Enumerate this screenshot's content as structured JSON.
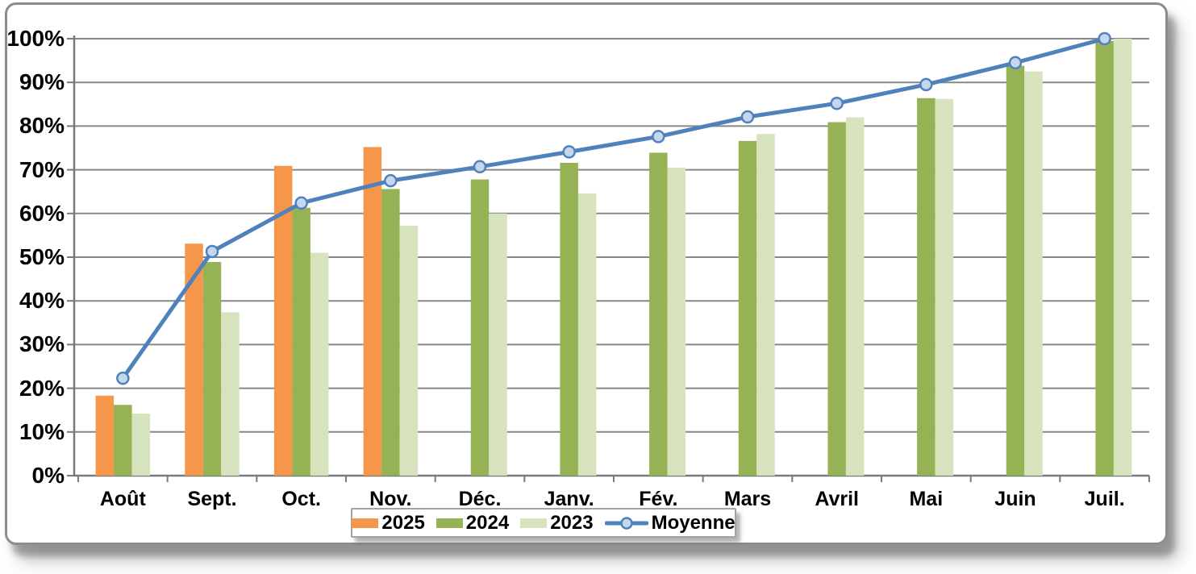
{
  "chart_data": {
    "type": "bar",
    "subtype": "grouped-bars-with-line-overlay",
    "title": "",
    "xlabel": "",
    "ylabel": "",
    "ylim": [
      0,
      100
    ],
    "grid": true,
    "legend_position": "bottom-center",
    "y_ticks": [
      "0%",
      "10%",
      "20%",
      "30%",
      "40%",
      "50%",
      "60%",
      "70%",
      "80%",
      "90%",
      "100%"
    ],
    "categories": [
      "Août",
      "Sept.",
      "Oct.",
      "Nov.",
      "Déc.",
      "Janv.",
      "Fév.",
      "Mars",
      "Avril",
      "Mai",
      "Juin",
      "Juil."
    ],
    "series": [
      {
        "name": "2025",
        "type": "bar",
        "color": "#F5964A",
        "values": [
          18.3,
          53.1,
          70.9,
          75.2,
          null,
          null,
          null,
          null,
          null,
          null,
          null,
          null
        ]
      },
      {
        "name": "2024",
        "type": "bar",
        "color": "#95B354",
        "values": [
          16.2,
          48.9,
          61.3,
          65.6,
          67.8,
          71.6,
          73.9,
          76.6,
          80.9,
          86.4,
          93.8,
          99.5
        ]
      },
      {
        "name": "2023",
        "type": "bar",
        "color": "#D6E3BC",
        "values": [
          14.2,
          37.4,
          51.0,
          57.2,
          60.0,
          64.6,
          70.5,
          78.2,
          82.0,
          86.2,
          92.5,
          100
        ]
      },
      {
        "name": "Moyenne",
        "type": "line",
        "color": "#4F81BD",
        "marker_fill": "#C5D7ED",
        "values": [
          22.3,
          51.3,
          62.4,
          67.5,
          70.7,
          74.1,
          77.6,
          82.1,
          85.2,
          89.5,
          94.5,
          100
        ]
      }
    ]
  },
  "colors": {
    "axis": "#7a7a7a",
    "gridline": "#878787",
    "frame_border": "#8c8c8c",
    "legend_border": "#a3a3a3",
    "text": "#000000"
  }
}
